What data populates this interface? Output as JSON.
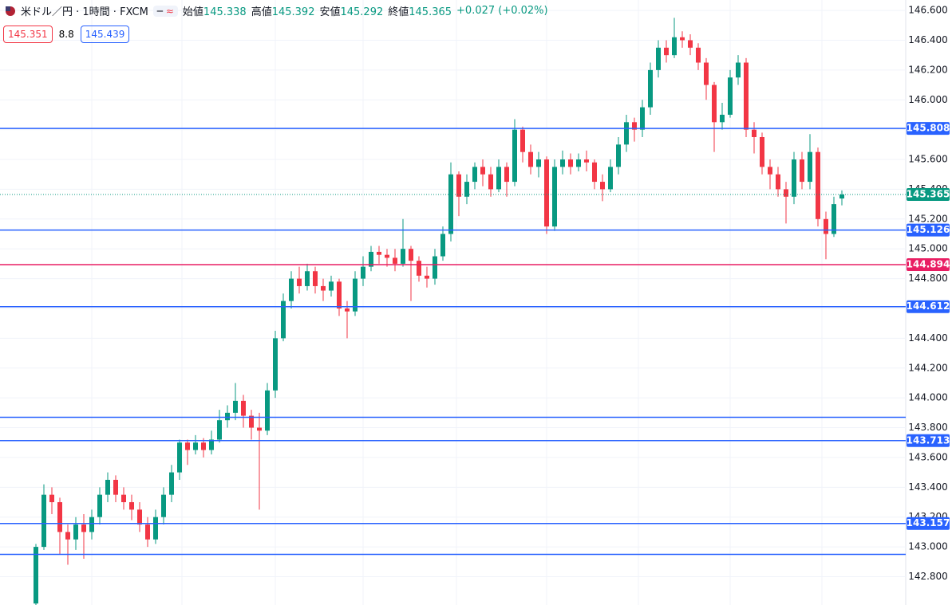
{
  "header": {
    "symbol": "米ドル／円 · 1時間 · FXCM",
    "open_label": "始値",
    "open": "145.338",
    "high_label": "高値",
    "high": "145.392",
    "low_label": "安値",
    "low": "145.292",
    "close_label": "終値",
    "close": "145.365",
    "change": "+0.027 (+0.02%)",
    "bid": "145.351",
    "spread": "8.8",
    "ask": "145.439"
  },
  "chart_data": {
    "type": "candlestick",
    "up_color": "#089981",
    "down_color": "#f23645",
    "grid": true,
    "ylim": [
      142.61,
      146.67
    ],
    "yticks": [
      {
        "value": 146.6,
        "label": "146.600"
      },
      {
        "value": 146.4,
        "label": "146.400"
      },
      {
        "value": 146.2,
        "label": "146.200"
      },
      {
        "value": 146.0,
        "label": "146.000"
      },
      {
        "value": 145.8,
        "label": "145.800"
      },
      {
        "value": 145.6,
        "label": "145.600"
      },
      {
        "value": 145.4,
        "label": "145.400"
      },
      {
        "value": 145.2,
        "label": "145.200"
      },
      {
        "value": 145.0,
        "label": "145.000"
      },
      {
        "value": 144.8,
        "label": "144.800"
      },
      {
        "value": 144.6,
        "label": "144.600"
      },
      {
        "value": 144.4,
        "label": "144.400"
      },
      {
        "value": 144.2,
        "label": "144.200"
      },
      {
        "value": 144.0,
        "label": "144.000"
      },
      {
        "value": 143.8,
        "label": "143.800"
      },
      {
        "value": 143.6,
        "label": "143.600"
      },
      {
        "value": 143.4,
        "label": "143.400"
      },
      {
        "value": 143.2,
        "label": "143.200"
      },
      {
        "value": 143.0,
        "label": "143.000"
      },
      {
        "value": 142.8,
        "label": "142.800"
      }
    ],
    "price_lines": [
      {
        "value": 145.808,
        "color": "#2962ff"
      },
      {
        "value": 145.126,
        "color": "#2962ff"
      },
      {
        "value": 144.894,
        "color": "#e91e63"
      },
      {
        "value": 144.612,
        "color": "#2962ff"
      },
      {
        "value": 143.713,
        "color": "#2962ff"
      },
      {
        "value": 143.157,
        "color": "#2962ff"
      }
    ],
    "plain_lines": [
      {
        "value": 143.87,
        "color": "#2962ff"
      },
      {
        "value": 142.95,
        "color": "#2962ff"
      }
    ],
    "last_price_color": "#089981",
    "open": [
      142.62,
      143.0,
      143.35,
      143.3,
      143.1,
      143.05,
      143.15,
      143.1,
      143.2,
      143.35,
      143.45,
      143.35,
      143.3,
      143.25,
      143.15,
      143.05,
      143.2,
      143.35,
      143.5,
      143.7,
      143.65,
      143.7,
      143.65,
      143.72,
      143.85,
      143.9,
      143.98,
      143.88,
      143.8,
      143.78,
      144.05,
      144.4,
      144.65,
      144.8,
      144.75,
      144.85,
      144.75,
      144.72,
      144.78,
      144.6,
      144.58,
      144.8,
      144.88,
      144.98,
      144.96,
      144.94,
      144.9,
      145.0,
      144.92,
      144.82,
      144.8,
      144.95,
      145.1,
      145.5,
      145.35,
      145.45,
      145.55,
      145.5,
      145.4,
      145.55,
      145.45,
      145.8,
      145.65,
      145.55,
      145.6,
      145.15,
      145.55,
      145.6,
      145.55,
      145.6,
      145.58,
      145.45,
      145.4,
      145.55,
      145.7,
      145.85,
      145.8,
      145.95,
      146.2,
      146.35,
      146.3,
      146.42,
      146.4,
      146.35,
      146.25,
      146.1,
      145.85,
      145.9,
      146.15,
      146.25,
      145.8,
      145.75,
      145.55,
      145.5,
      145.4,
      145.35,
      145.6,
      145.45,
      145.65,
      145.2,
      145.1,
      145.338
    ],
    "high": [
      143.02,
      143.42,
      143.4,
      143.33,
      143.15,
      143.2,
      143.22,
      143.25,
      143.4,
      143.5,
      143.48,
      143.4,
      143.35,
      143.3,
      143.2,
      143.25,
      143.4,
      143.55,
      143.72,
      143.72,
      143.75,
      143.73,
      143.78,
      143.92,
      143.95,
      144.1,
      144.02,
      143.92,
      143.9,
      144.1,
      144.45,
      144.7,
      144.85,
      144.88,
      144.9,
      144.88,
      144.8,
      144.82,
      144.8,
      144.65,
      144.85,
      144.95,
      145.02,
      145.02,
      145.0,
      145.0,
      145.2,
      145.02,
      144.95,
      144.88,
      145.0,
      145.15,
      145.58,
      145.52,
      145.5,
      145.58,
      145.6,
      145.55,
      145.6,
      145.58,
      145.87,
      145.82,
      145.7,
      145.65,
      145.62,
      145.6,
      145.66,
      145.64,
      145.64,
      145.66,
      145.6,
      145.5,
      145.6,
      145.75,
      145.9,
      145.88,
      146.0,
      146.25,
      146.4,
      146.4,
      146.55,
      146.46,
      146.44,
      146.38,
      146.28,
      146.12,
      145.98,
      146.2,
      146.3,
      146.28,
      145.85,
      145.78,
      145.6,
      145.55,
      145.45,
      145.65,
      145.65,
      145.77,
      145.68,
      145.25,
      145.35,
      145.392
    ],
    "low": [
      142.6,
      142.98,
      143.22,
      142.95,
      142.88,
      142.98,
      142.92,
      143.05,
      143.15,
      143.3,
      143.3,
      143.25,
      143.18,
      143.1,
      143.0,
      143.02,
      143.15,
      143.3,
      143.45,
      143.55,
      143.62,
      143.6,
      143.62,
      143.7,
      143.8,
      143.85,
      143.8,
      143.72,
      143.25,
      143.75,
      144.0,
      144.38,
      144.6,
      144.7,
      144.72,
      144.7,
      144.65,
      144.68,
      144.55,
      144.4,
      144.55,
      144.75,
      144.85,
      144.9,
      144.88,
      144.85,
      144.88,
      144.65,
      144.78,
      144.74,
      144.76,
      144.92,
      145.05,
      145.22,
      145.3,
      145.4,
      145.42,
      145.35,
      145.38,
      145.35,
      145.42,
      145.58,
      145.5,
      145.48,
      145.1,
      145.12,
      145.5,
      145.5,
      145.52,
      145.52,
      145.4,
      145.32,
      145.38,
      145.5,
      145.65,
      145.72,
      145.75,
      145.9,
      146.15,
      146.25,
      146.28,
      146.35,
      146.3,
      146.2,
      146.0,
      145.65,
      145.8,
      145.88,
      146.1,
      145.75,
      145.64,
      145.5,
      145.4,
      145.35,
      145.17,
      145.3,
      145.4,
      145.4,
      145.15,
      144.93,
      145.08,
      145.292
    ],
    "close": [
      143.0,
      143.35,
      143.3,
      143.1,
      143.05,
      143.15,
      143.1,
      143.2,
      143.35,
      143.45,
      143.35,
      143.3,
      143.25,
      143.15,
      143.05,
      143.2,
      143.35,
      143.5,
      143.7,
      143.65,
      143.7,
      143.65,
      143.72,
      143.85,
      143.9,
      143.98,
      143.88,
      143.8,
      143.78,
      144.05,
      144.4,
      144.65,
      144.8,
      144.75,
      144.85,
      144.75,
      144.72,
      144.78,
      144.6,
      144.58,
      144.8,
      144.88,
      144.98,
      144.96,
      144.94,
      144.9,
      145.0,
      144.92,
      144.82,
      144.8,
      144.95,
      145.1,
      145.5,
      145.35,
      145.45,
      145.55,
      145.5,
      145.4,
      145.55,
      145.45,
      145.8,
      145.65,
      145.55,
      145.6,
      145.15,
      145.55,
      145.6,
      145.55,
      145.6,
      145.58,
      145.45,
      145.4,
      145.55,
      145.7,
      145.85,
      145.8,
      145.95,
      146.2,
      146.35,
      146.3,
      146.42,
      146.4,
      146.35,
      146.25,
      146.1,
      145.85,
      145.9,
      146.15,
      146.25,
      145.8,
      145.75,
      145.55,
      145.5,
      145.4,
      145.35,
      145.6,
      145.45,
      145.65,
      145.2,
      145.1,
      145.3,
      145.365
    ]
  }
}
